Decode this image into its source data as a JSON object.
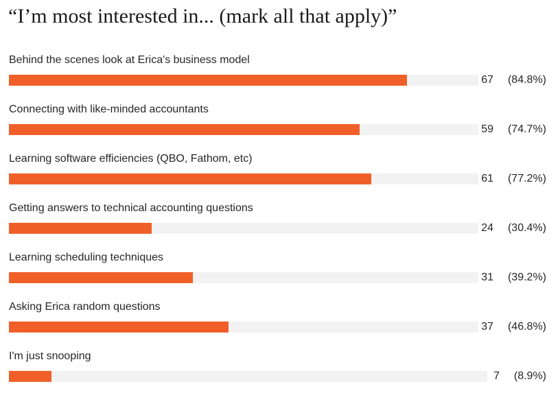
{
  "title": "“I’m most interested in... (mark all that apply)”",
  "colors": {
    "bar": "#f15f29",
    "track": "#f2f2f2"
  },
  "chart_data": {
    "type": "bar",
    "orientation": "horizontal",
    "title": "“I’m most interested in... (mark all that apply)”",
    "categories": [
      "Behind the scenes look at Erica's business model",
      "Connecting with like-minded accountants",
      "Learning software efficiencies (QBO, Fathom, etc)",
      "Getting answers to technical accounting questions",
      "Learning scheduling techniques",
      "Asking Erica random questions",
      "I'm just snooping"
    ],
    "values": [
      67,
      59,
      61,
      24,
      31,
      37,
      7
    ],
    "percent_labels": [
      "(84.8%)",
      "(74.7%)",
      "(77.2%)",
      "(30.4%)",
      "(39.2%)",
      "(46.8%)",
      "(8.9%)"
    ],
    "percent_values": [
      84.8,
      74.7,
      77.2,
      30.4,
      39.2,
      46.8,
      8.9
    ],
    "xlim": [
      0,
      100
    ],
    "grid": false
  }
}
